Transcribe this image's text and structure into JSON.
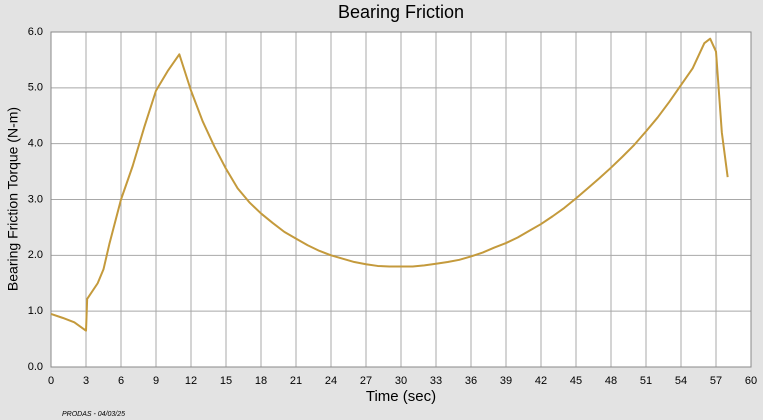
{
  "chart_data": {
    "type": "line",
    "title": "Bearing Friction",
    "xlabel": "Time (sec)",
    "ylabel": "Bearing Friction Torque (N-m)",
    "note": "PRODAS - 04/03/25",
    "color": "#c49a3c",
    "x": [
      0,
      1,
      2,
      3,
      3.1,
      4,
      4.5,
      5,
      6,
      7,
      8,
      9,
      10,
      11,
      12,
      13,
      14,
      15,
      16,
      17,
      18,
      19,
      20,
      21,
      22,
      23,
      24,
      25,
      26,
      27,
      28,
      29,
      30,
      31,
      32,
      33,
      34,
      35,
      36,
      37,
      38,
      39,
      40,
      41,
      42,
      43,
      44,
      45,
      46,
      47,
      48,
      49,
      50,
      51,
      52,
      53,
      54,
      55,
      56,
      56.5,
      57,
      57.5,
      58
    ],
    "values": [
      0.95,
      0.88,
      0.8,
      0.65,
      1.22,
      1.5,
      1.75,
      2.2,
      3.0,
      3.6,
      4.3,
      4.95,
      5.3,
      5.6,
      4.95,
      4.4,
      3.95,
      3.55,
      3.2,
      2.95,
      2.75,
      2.58,
      2.42,
      2.3,
      2.18,
      2.08,
      2.0,
      1.94,
      1.88,
      1.84,
      1.81,
      1.8,
      1.8,
      1.8,
      1.82,
      1.85,
      1.88,
      1.92,
      1.98,
      2.05,
      2.14,
      2.22,
      2.32,
      2.44,
      2.56,
      2.7,
      2.85,
      3.02,
      3.2,
      3.38,
      3.57,
      3.77,
      3.98,
      4.22,
      4.47,
      4.75,
      5.05,
      5.35,
      5.8,
      5.88,
      5.65,
      4.2,
      3.4
    ],
    "xlim": [
      0,
      60
    ],
    "xticks": [
      0,
      3,
      6,
      9,
      12,
      15,
      18,
      21,
      24,
      27,
      30,
      33,
      36,
      39,
      42,
      45,
      48,
      51,
      54,
      57,
      60
    ],
    "ylim": [
      0,
      6
    ],
    "yticks": [
      {
        "value": 0,
        "label": "0.0"
      },
      {
        "value": 1,
        "label": "1.0"
      },
      {
        "value": 2,
        "label": "2.0"
      },
      {
        "value": 3,
        "label": "3.0"
      },
      {
        "value": 4,
        "label": "4.0"
      },
      {
        "value": 5,
        "label": "5.0"
      },
      {
        "value": 6,
        "label": "6.0"
      }
    ],
    "grid": true
  }
}
